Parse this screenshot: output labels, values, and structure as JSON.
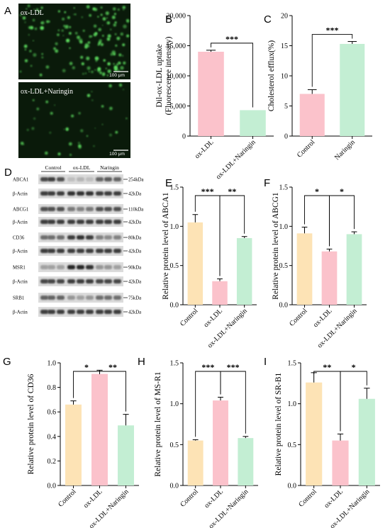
{
  "panels": {
    "A": {
      "letter": "A",
      "top_label": "ox-LDL",
      "bottom_label": "ox-LDL+Naringin",
      "scale_label": "100 μm"
    },
    "D": {
      "letter": "D",
      "groups": [
        "Control",
        "ox-LDL",
        "Naringin"
      ],
      "rows": [
        {
          "protein": "ABCA1",
          "kda": "254kDa"
        },
        {
          "protein": "β-Actin",
          "kda": "42kDa"
        },
        {
          "protein": "ABCG1",
          "kda": "110kDa"
        },
        {
          "protein": "β-Actin",
          "kda": "42kDa"
        },
        {
          "protein": "CD36",
          "kda": "80kDa"
        },
        {
          "protein": "β-Actin",
          "kda": "42kDa"
        },
        {
          "protein": "MSR1",
          "kda": "90kDa"
        },
        {
          "protein": "β-Actin",
          "kda": "42kDa"
        },
        {
          "protein": "SRB1",
          "kda": "75kDa"
        },
        {
          "protein": "β-Actin",
          "kda": "42kDa"
        }
      ]
    }
  },
  "colors": {
    "control": "#fde3b5",
    "oxldl": "#fbc2cb",
    "naringin": "#c3eed3",
    "fluorescence_bg": "#0a1a0a",
    "fluorescence_signal": "#5fe060"
  },
  "chart_data": [
    {
      "id": "B",
      "letter": "B",
      "type": "bar",
      "categories": [
        "ox-LDL",
        "ox-LDL+Naringin"
      ],
      "values": [
        14000,
        4300
      ],
      "errors": [
        250,
        0
      ],
      "ylabel_lines": [
        "Dil-ox-LDL uptake",
        "(Fluorescence intensity)"
      ],
      "ylim": [
        0,
        20000
      ],
      "yticks": [
        0,
        5000,
        10000,
        15000,
        20000
      ],
      "ytick_labels": [
        "0",
        "5,000",
        "10,000",
        "15,000",
        "20,000"
      ],
      "colors": [
        "#fbc2cb",
        "#c3eed3"
      ],
      "sig": [
        {
          "a": 0,
          "b": 1,
          "label": "***"
        }
      ]
    },
    {
      "id": "C",
      "letter": "C",
      "type": "bar",
      "categories": [
        "Control",
        "Naringin"
      ],
      "values": [
        7.0,
        15.3
      ],
      "errors": [
        0.7,
        0.4
      ],
      "ylabel_lines": [
        "Cholesterol efflux(%)"
      ],
      "ylim": [
        0,
        20
      ],
      "yticks": [
        0,
        5,
        10,
        15,
        20
      ],
      "ytick_labels": [
        "0",
        "5",
        "10",
        "15",
        "20"
      ],
      "colors": [
        "#fbc2cb",
        "#c3eed3"
      ],
      "sig": [
        {
          "a": 0,
          "b": 1,
          "label": "***"
        }
      ]
    },
    {
      "id": "E",
      "letter": "E",
      "type": "bar",
      "categories": [
        "Control",
        "ox-LDL",
        "ox-LDL+Naringin"
      ],
      "values": [
        1.05,
        0.3,
        0.85
      ],
      "errors": [
        0.1,
        0.03,
        0.02
      ],
      "ylabel_lines": [
        "Relative protein level of ABCA1"
      ],
      "ylim": [
        0,
        1.5
      ],
      "yticks": [
        0,
        0.5,
        1.0,
        1.5
      ],
      "ytick_labels": [
        "0.0",
        "0.5",
        "1.0",
        "1.5"
      ],
      "colors": [
        "#fde3b5",
        "#fbc2cb",
        "#c3eed3"
      ],
      "sig": [
        {
          "a": 0,
          "b": 1,
          "label": "***"
        },
        {
          "a": 1,
          "b": 2,
          "label": "**"
        }
      ]
    },
    {
      "id": "F",
      "letter": "F",
      "type": "bar",
      "categories": [
        "Control",
        "ox-LDL",
        "ox-LDL+Naringin"
      ],
      "values": [
        0.91,
        0.68,
        0.9
      ],
      "errors": [
        0.08,
        0.03,
        0.03
      ],
      "ylabel_lines": [
        "Relative protein level of ABCG1"
      ],
      "ylim": [
        0,
        1.5
      ],
      "yticks": [
        0,
        0.5,
        1.0,
        1.5
      ],
      "ytick_labels": [
        "0.0",
        "0.5",
        "1.0",
        "1.5"
      ],
      "colors": [
        "#fde3b5",
        "#fbc2cb",
        "#c3eed3"
      ],
      "sig": [
        {
          "a": 0,
          "b": 1,
          "label": "*"
        },
        {
          "a": 1,
          "b": 2,
          "label": "*"
        }
      ]
    },
    {
      "id": "G",
      "letter": "G",
      "type": "bar",
      "categories": [
        "Control",
        "ox-LDL",
        "ox-LDL+Naringin"
      ],
      "values": [
        0.66,
        0.91,
        0.49
      ],
      "errors": [
        0.03,
        0.03,
        0.09
      ],
      "ylabel_lines": [
        "Relative protein level of CD36"
      ],
      "ylim": [
        0,
        1.0
      ],
      "yticks": [
        0,
        0.2,
        0.4,
        0.6,
        0.8,
        1.0
      ],
      "ytick_labels": [
        "0.0",
        "0.2",
        "0.4",
        "0.6",
        "0.8",
        "1.0"
      ],
      "colors": [
        "#fde3b5",
        "#fbc2cb",
        "#c3eed3"
      ],
      "sig": [
        {
          "a": 0,
          "b": 1,
          "label": "*"
        },
        {
          "a": 1,
          "b": 2,
          "label": "**"
        }
      ]
    },
    {
      "id": "H",
      "letter": "H",
      "type": "bar",
      "categories": [
        "Control",
        "ox-LDL",
        "ox-LDL+Naringin"
      ],
      "values": [
        0.55,
        1.04,
        0.58
      ],
      "errors": [
        0.01,
        0.04,
        0.02
      ],
      "ylabel_lines": [
        "Relative protein level of MS-R1"
      ],
      "ylim": [
        0,
        1.5
      ],
      "yticks": [
        0,
        0.5,
        1.0,
        1.5
      ],
      "ytick_labels": [
        "0.0",
        "0.5",
        "1.0",
        "1.5"
      ],
      "colors": [
        "#fde3b5",
        "#fbc2cb",
        "#c3eed3"
      ],
      "sig": [
        {
          "a": 0,
          "b": 1,
          "label": "***"
        },
        {
          "a": 1,
          "b": 2,
          "label": "***"
        }
      ]
    },
    {
      "id": "I",
      "letter": "I",
      "type": "bar",
      "categories": [
        "Control",
        "ox-LDL",
        "ox-LDL+Naringin"
      ],
      "values": [
        1.26,
        0.55,
        1.06
      ],
      "errors": [
        0.12,
        0.08,
        0.13
      ],
      "ylabel_lines": [
        "Relative protein level of SR-B1"
      ],
      "ylim": [
        0,
        1.5
      ],
      "yticks": [
        0,
        0.5,
        1.0,
        1.5
      ],
      "ytick_labels": [
        "0.0",
        "0.5",
        "1.0",
        "1.5"
      ],
      "colors": [
        "#fde3b5",
        "#fbc2cb",
        "#c3eed3"
      ],
      "sig": [
        {
          "a": 0,
          "b": 1,
          "label": "**"
        },
        {
          "a": 1,
          "b": 2,
          "label": "*"
        }
      ]
    }
  ]
}
